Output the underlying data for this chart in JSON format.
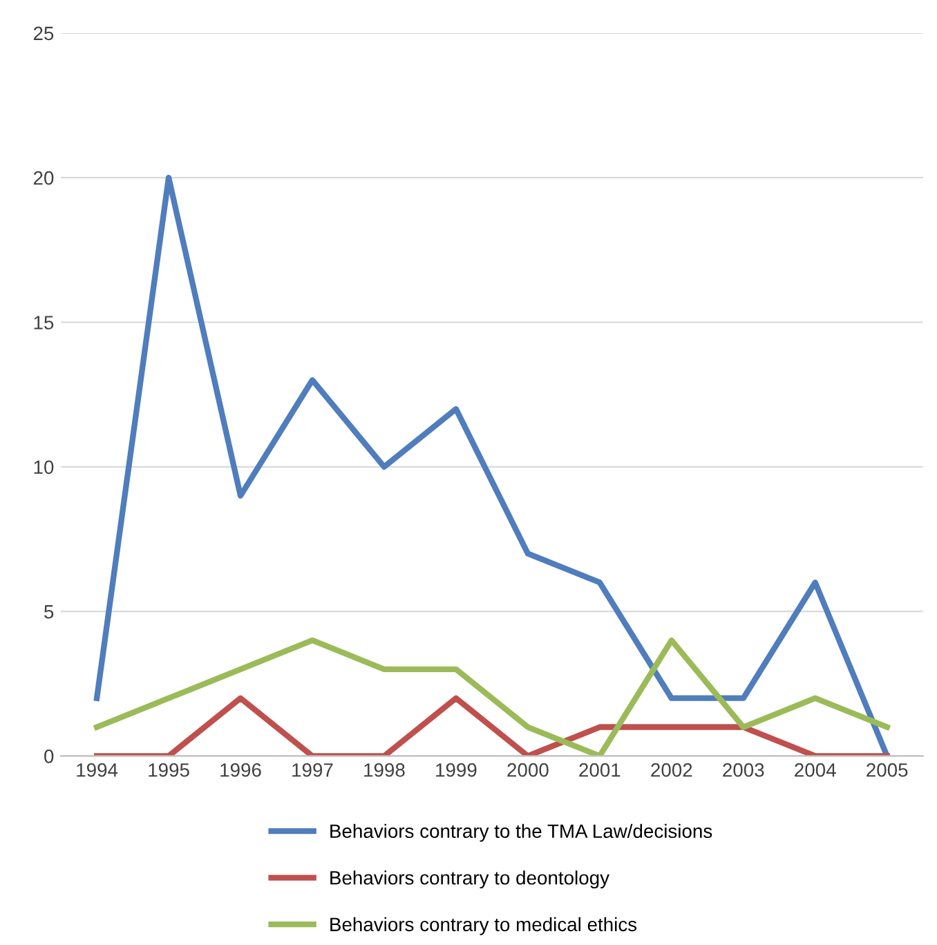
{
  "chart_data": {
    "type": "line",
    "categories": [
      "1994",
      "1995",
      "1996",
      "1997",
      "1998",
      "1999",
      "2000",
      "2001",
      "2002",
      "2003",
      "2004",
      "2005"
    ],
    "series": [
      {
        "name": "Behaviors contrary to the TMA Law/decisions",
        "color": "#4f7dbd",
        "values": [
          2,
          20,
          9,
          13,
          10,
          12,
          7,
          6,
          2,
          2,
          6,
          0
        ]
      },
      {
        "name": "Behaviors contrary to deontology",
        "color": "#bf504d",
        "values": [
          0,
          0,
          2,
          0,
          0,
          2,
          0,
          1,
          1,
          1,
          0,
          0
        ]
      },
      {
        "name": "Behaviors contrary to medical ethics",
        "color": "#9bbb59",
        "values": [
          1,
          2,
          3,
          4,
          3,
          3,
          1,
          0,
          4,
          1,
          2,
          1
        ]
      }
    ],
    "ylim": [
      0,
      25
    ],
    "yticks": [
      0,
      5,
      10,
      15,
      20,
      25
    ],
    "grid": "y",
    "legend": "bottom",
    "marker": "none",
    "line_style": "solid"
  }
}
